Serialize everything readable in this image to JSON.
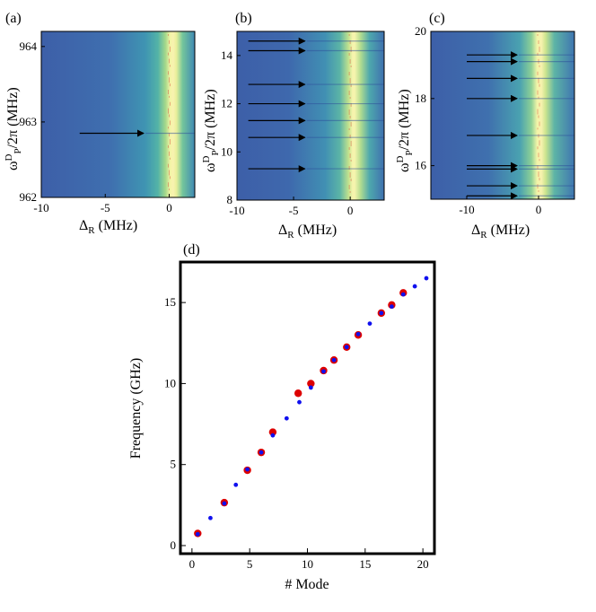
{
  "chart_data": [
    {
      "panel": "(a)",
      "type": "heatmap",
      "xlabel": "Δ_R (MHz)",
      "ylabel": "ω^D_P/2π (MHz)",
      "xlim": [
        -10,
        2
      ],
      "ylim": [
        962,
        964.2
      ],
      "xticks": [
        "-10",
        "-5",
        "0"
      ],
      "xtick_values": [
        -10,
        -5,
        0
      ],
      "yticks": [
        "962",
        "963",
        "964"
      ],
      "ytick_values": [
        962,
        963,
        964
      ],
      "arrows_y": [
        962.85
      ],
      "arrow_x": [
        -7,
        -2
      ]
    },
    {
      "panel": "(b)",
      "type": "heatmap",
      "xlabel": "Δ_R (MHz)",
      "ylabel": "ω^D_P/2π (MHz)",
      "xlim": [
        -10,
        3
      ],
      "ylim": [
        8,
        15
      ],
      "xticks": [
        "-10",
        "-5",
        "0"
      ],
      "xtick_values": [
        -10,
        -5,
        0
      ],
      "yticks": [
        "8",
        "10",
        "12",
        "14"
      ],
      "ytick_values": [
        8,
        10,
        12,
        14
      ],
      "arrows_y": [
        14.6,
        14.2,
        12.8,
        12.0,
        11.3,
        10.6,
        9.3
      ],
      "arrow_x": [
        -9,
        -4
      ]
    },
    {
      "panel": "(c)",
      "type": "heatmap",
      "xlabel": "Δ_R (MHz)",
      "ylabel": "ω^D_P/2π (MHz)",
      "xlim": [
        -15,
        5
      ],
      "ylim": [
        15,
        20
      ],
      "xticks": [
        "-10",
        "0"
      ],
      "xtick_values": [
        -10,
        0
      ],
      "yticks": [
        "16",
        "18",
        "20"
      ],
      "ytick_values": [
        16,
        18,
        20
      ],
      "arrows_y": [
        19.3,
        19.1,
        18.6,
        18.0,
        16.9,
        16.0,
        15.9,
        15.4,
        15.1
      ],
      "arrow_x": [
        -10,
        -3
      ]
    },
    {
      "panel": "(d)",
      "type": "scatter",
      "xlabel": "# Mode",
      "ylabel": "Frequency (GHz)",
      "xlim": [
        -1,
        21
      ],
      "ylim": [
        -0.5,
        17.5
      ],
      "xticks": [
        "0",
        "5",
        "10",
        "15",
        "20"
      ],
      "xtick_values": [
        0,
        5,
        10,
        15,
        20
      ],
      "yticks": [
        "0",
        "5",
        "10",
        "15"
      ],
      "ytick_values": [
        0,
        5,
        10,
        15
      ],
      "series": [
        {
          "color": "#dd0000",
          "x": [
            0.5,
            2.8,
            4.8,
            6,
            7,
            9.2,
            10.3,
            11.4,
            12.3,
            13.4,
            14.4,
            16.4,
            17.3,
            18.3
          ],
          "y": [
            0.75,
            2.65,
            4.65,
            5.75,
            7.0,
            9.4,
            10.0,
            10.8,
            11.45,
            12.25,
            13.0,
            14.35,
            14.85,
            15.6
          ]
        },
        {
          "color": "#1010ee",
          "x": [
            0.5,
            1.6,
            2.8,
            3.8,
            4.8,
            6,
            7,
            8.2,
            9.3,
            10.3,
            11.4,
            12.3,
            13.4,
            14.4,
            15.4,
            16.4,
            17.3,
            18.3,
            19.3,
            20.3
          ],
          "y": [
            0.7,
            1.7,
            2.6,
            3.75,
            4.7,
            5.75,
            6.8,
            7.85,
            8.85,
            9.75,
            10.75,
            11.45,
            12.25,
            13.05,
            13.7,
            14.35,
            14.75,
            15.5,
            16.0,
            16.5
          ]
        }
      ]
    }
  ]
}
